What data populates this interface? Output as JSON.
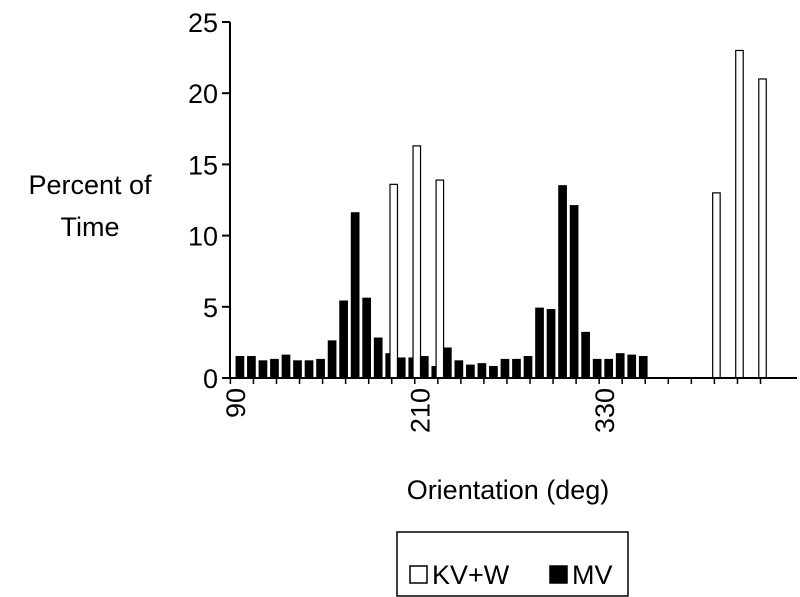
{
  "chart_data": {
    "type": "bar",
    "title": "",
    "xlabel": "Orientation (deg)",
    "ylabel": [
      "Percent of",
      "Time"
    ],
    "x": [
      90,
      97.5,
      105,
      112.5,
      120,
      127.5,
      135,
      142.5,
      150,
      157.5,
      165,
      172.5,
      180,
      187.5,
      195,
      202.5,
      210,
      217.5,
      225,
      232.5,
      240,
      247.5,
      255,
      262.5,
      270,
      277.5,
      285,
      292.5,
      300,
      307.5,
      315,
      322.5,
      330,
      337.5,
      345,
      352.5,
      360,
      367.5,
      375,
      382.5,
      390,
      397.5,
      405,
      412.5,
      420,
      427.5,
      435
    ],
    "x_ticks": [
      90,
      210,
      330
    ],
    "xlim": [
      86,
      455
    ],
    "ylim": [
      0,
      25
    ],
    "y_ticks": [
      0,
      5,
      10,
      15,
      20,
      25
    ],
    "series": [
      {
        "name": "KV+W",
        "color": "#ffffff",
        "values": [
          0,
          0,
          0,
          0,
          0,
          0,
          0,
          0,
          0,
          0,
          0,
          0,
          0,
          0,
          13.6,
          0,
          16.3,
          0,
          13.9,
          0,
          0,
          0,
          0,
          0,
          0,
          0,
          0,
          0,
          0,
          0,
          0,
          0,
          0,
          0,
          0,
          0,
          0,
          0,
          0,
          0,
          0,
          0,
          13.0,
          0,
          23.0,
          0,
          21.0
        ]
      },
      {
        "name": "MV",
        "color": "#000000",
        "values": [
          1.5,
          1.5,
          1.2,
          1.3,
          1.6,
          1.2,
          1.2,
          1.3,
          2.6,
          5.4,
          11.6,
          5.6,
          2.8,
          1.7,
          1.4,
          1.4,
          1.5,
          0.8,
          2.1,
          1.2,
          0.9,
          1.0,
          0.8,
          1.3,
          1.3,
          1.5,
          4.9,
          4.8,
          13.5,
          12.1,
          3.2,
          1.3,
          1.3,
          1.7,
          1.6,
          1.5,
          0,
          0,
          0,
          0,
          0,
          0,
          0,
          0,
          0,
          0,
          0
        ]
      }
    ],
    "legend": {
      "position": "bottom",
      "items": [
        "KV+W",
        "MV"
      ]
    },
    "grid": false
  }
}
